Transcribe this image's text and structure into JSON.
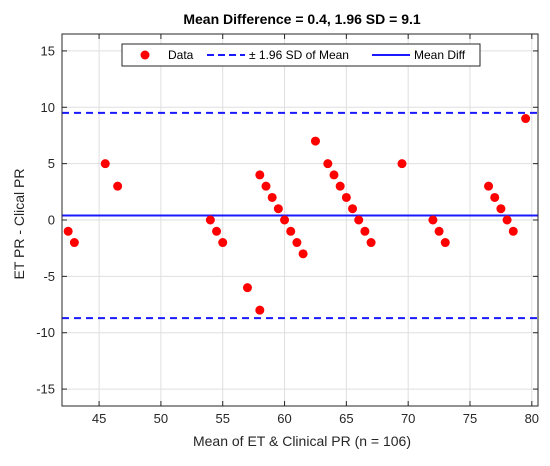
{
  "chart_data": {
    "type": "scatter",
    "title": "Mean Difference = 0.4, 1.96 SD = 9.1",
    "xlabel": "Mean of ET & Clinical PR (n = 106)",
    "ylabel": "ET PR - Clical PR",
    "xlim": [
      42,
      80.5
    ],
    "ylim": [
      -16.5,
      16.5
    ],
    "xticks": [
      45,
      50,
      55,
      60,
      65,
      70,
      75,
      80
    ],
    "yticks": [
      -15,
      -10,
      -5,
      0,
      5,
      10,
      15
    ],
    "grid": true,
    "legend_position": "top-center",
    "series": [
      {
        "name": "Data",
        "kind": "markers",
        "color": "#ff0000",
        "points": [
          [
            42.5,
            -1
          ],
          [
            43,
            -2
          ],
          [
            45.5,
            5
          ],
          [
            46.5,
            3
          ],
          [
            54,
            0
          ],
          [
            54.5,
            -1
          ],
          [
            55,
            -2
          ],
          [
            57,
            -6
          ],
          [
            58,
            -8
          ],
          [
            58,
            4
          ],
          [
            58.5,
            3
          ],
          [
            59,
            2
          ],
          [
            59.5,
            1
          ],
          [
            60,
            0
          ],
          [
            60.5,
            -1
          ],
          [
            61,
            -2
          ],
          [
            61.5,
            -3
          ],
          [
            62.5,
            7
          ],
          [
            63.5,
            5
          ],
          [
            64,
            4
          ],
          [
            64.5,
            3
          ],
          [
            65,
            2
          ],
          [
            65.5,
            1
          ],
          [
            66,
            0
          ],
          [
            66.5,
            -1
          ],
          [
            67,
            -2
          ],
          [
            69.5,
            5
          ],
          [
            72,
            0
          ],
          [
            72.5,
            -1
          ],
          [
            73,
            -2
          ],
          [
            76.5,
            3
          ],
          [
            77,
            2
          ],
          [
            77.5,
            1
          ],
          [
            78,
            0
          ],
          [
            78.5,
            -1
          ],
          [
            79.5,
            9
          ]
        ]
      },
      {
        "name": "± 1.96 SD of Mean",
        "kind": "hlines",
        "style": "dashed",
        "color": "#1a1aff",
        "values": [
          9.5,
          -8.7
        ]
      },
      {
        "name": "Mean Diff",
        "kind": "hline",
        "style": "solid",
        "color": "#1a1aff",
        "value": 0.4
      }
    ]
  }
}
